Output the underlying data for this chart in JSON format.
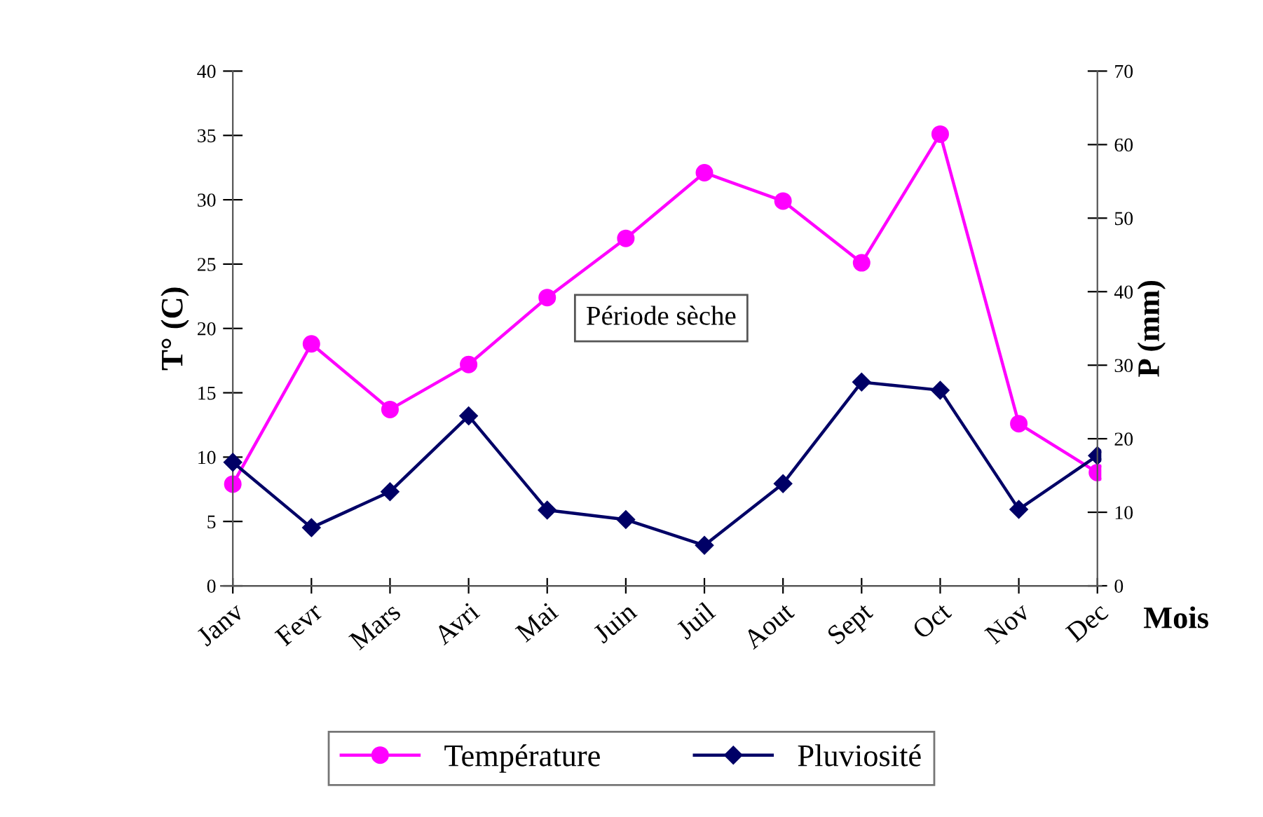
{
  "chart_data": {
    "type": "line",
    "categories": [
      "Janv",
      "Fevr",
      "Mars",
      "Avri",
      "Mai",
      "Juin",
      "Juil",
      "Aout",
      "Sept",
      "Oct",
      "Nov",
      "Dec"
    ],
    "series": [
      {
        "name": "Température",
        "color": "#ff00ff",
        "marker": "circle",
        "values": [
          7.9,
          18.8,
          13.7,
          17.2,
          22.4,
          27.0,
          32.1,
          29.9,
          25.1,
          35.1,
          12.6,
          8.8
        ]
      },
      {
        "name": "Pluviosité",
        "color": "#000066",
        "marker": "diamond",
        "axis": "y2",
        "values": [
          16.8,
          7.9,
          12.8,
          23.1,
          10.3,
          9.0,
          5.5,
          13.9,
          27.7,
          26.6,
          10.4,
          17.7
        ]
      }
    ],
    "xlabel": "Mois",
    "ylabel": "T° (C)",
    "y2label": "P (mm)",
    "ylim": [
      0,
      40
    ],
    "yticks": [
      0,
      5,
      10,
      15,
      20,
      25,
      30,
      35,
      40
    ],
    "y2lim": [
      0,
      70
    ],
    "y2ticks": [
      0,
      10,
      20,
      30,
      40,
      50,
      60,
      70
    ],
    "annotations": [
      "Période sèche"
    ],
    "legend": "bottom",
    "grid": false,
    "line_style": "solid"
  }
}
